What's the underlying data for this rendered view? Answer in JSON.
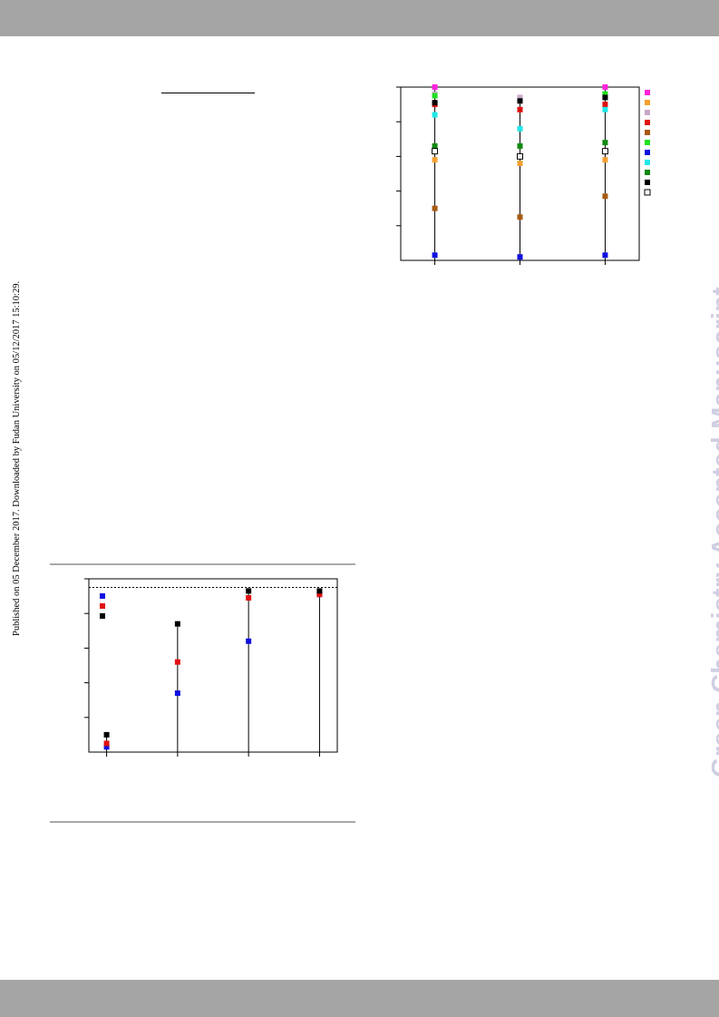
{
  "side_note": "Published on 05 December 2017. Downloaded by Fudan University on 05/12/2017 15:10:29.",
  "watermark": "Green Chemistry Accepted Manuscript",
  "colors": {
    "band": "#a5a5a5",
    "watermark": "#cfcfe3",
    "rule": "#a9a9a9"
  },
  "chart_data": [
    {
      "type": "scatter",
      "title": "",
      "xlabel": "",
      "ylabel": "",
      "x": [
        1,
        2,
        3
      ],
      "xlim": [
        0.6,
        3.4
      ],
      "ylim": [
        0,
        100
      ],
      "legend": "right",
      "stems": true,
      "series": [
        {
          "color": "#ff22dd",
          "filled": true,
          "values": [
            100,
            null,
            100
          ]
        },
        {
          "color": "#f5a030",
          "filled": true,
          "values": [
            null,
            null,
            null
          ]
        },
        {
          "color": "#c8a8c8",
          "filled": true,
          "values": [
            96,
            94,
            96
          ]
        },
        {
          "color": "#e01010",
          "filled": true,
          "values": [
            90,
            87,
            90
          ]
        },
        {
          "color": "#a85a12",
          "filled": true,
          "values": [
            30,
            25,
            37
          ]
        },
        {
          "color": "#20e020",
          "filled": true,
          "values": [
            95,
            null,
            96
          ]
        },
        {
          "color": "#1010e0",
          "filled": true,
          "values": [
            3,
            2,
            3
          ]
        },
        {
          "color": "#20e8e8",
          "filled": true,
          "values": [
            84,
            76,
            87
          ]
        },
        {
          "color": "#108a10",
          "filled": true,
          "values": [
            66,
            66,
            68
          ]
        },
        {
          "color": "#000000",
          "filled": true,
          "values": [
            91,
            92,
            94
          ]
        },
        {
          "color": "#000000",
          "filled": false,
          "values": [
            63,
            60,
            63
          ]
        },
        {
          "color": "#f5a030",
          "filled": true,
          "values": [
            58,
            56,
            58
          ]
        }
      ]
    },
    {
      "type": "scatter",
      "title": "",
      "xlabel": "",
      "ylabel": "",
      "x": [
        1,
        2,
        3,
        4
      ],
      "xlim": [
        0.75,
        4.25
      ],
      "ylim": [
        0,
        100
      ],
      "reference_line": 95,
      "legend": "top-left",
      "stems": true,
      "series": [
        {
          "color": "#1010e0",
          "filled": true,
          "values": [
            3,
            34,
            64,
            91
          ]
        },
        {
          "color": "#e01010",
          "filled": true,
          "values": [
            5,
            52,
            89,
            91
          ]
        },
        {
          "color": "#000000",
          "filled": true,
          "values": [
            10,
            74,
            93,
            93
          ]
        }
      ]
    }
  ]
}
